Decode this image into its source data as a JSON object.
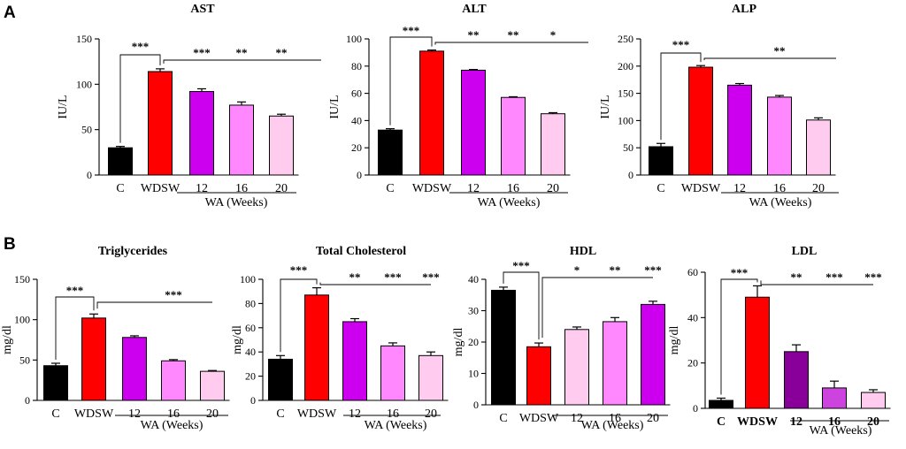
{
  "panel_labels": [
    "A",
    "B"
  ],
  "chart_data": [
    {
      "type": "bar",
      "title": "AST",
      "ylabel": "IU/L",
      "categories": [
        "C",
        "WDSW",
        "12",
        "16",
        "20"
      ],
      "values": [
        30,
        114,
        92,
        77,
        65
      ],
      "errors": [
        1.5,
        3,
        3,
        3.5,
        2
      ],
      "ylim": [
        0,
        150
      ],
      "yticks": [
        0,
        50,
        100,
        150
      ],
      "colors": [
        "#000000",
        "#ff0000",
        "#cc00ee",
        "#ff88ff",
        "#ffccf0"
      ],
      "group_label": "WA (Weeks)",
      "significance": [
        "***",
        "***",
        "**",
        "**"
      ]
    },
    {
      "type": "bar",
      "title": "ALT",
      "ylabel": "IU/L",
      "categories": [
        "C",
        "WDSW",
        "12",
        "16",
        "20"
      ],
      "values": [
        33,
        91,
        77,
        57,
        45
      ],
      "errors": [
        1,
        0.8,
        0.5,
        0.5,
        0.8
      ],
      "ylim": [
        0,
        100
      ],
      "yticks": [
        0,
        20,
        40,
        60,
        80,
        100
      ],
      "colors": [
        "#000000",
        "#ff0000",
        "#cc00ee",
        "#ff88ff",
        "#ffccf0"
      ],
      "group_label": "WA (Weeks)",
      "significance": [
        "***",
        "**",
        "**",
        "*"
      ]
    },
    {
      "type": "bar",
      "title": "ALP",
      "ylabel": "IU/L",
      "categories": [
        "C",
        "WDSW",
        "12",
        "16",
        "20"
      ],
      "values": [
        52,
        198,
        165,
        143,
        101
      ],
      "errors": [
        6,
        3,
        3,
        3,
        4
      ],
      "ylim": [
        0,
        250
      ],
      "yticks": [
        0,
        50,
        100,
        150,
        200,
        250
      ],
      "colors": [
        "#000000",
        "#ff0000",
        "#cc00ee",
        "#ff88ff",
        "#ffccf0"
      ],
      "group_label": "WA (Weeks)",
      "significance": [
        "***",
        "**"
      ]
    },
    {
      "type": "bar",
      "title": "Triglycerides",
      "ylabel": "mg/dl",
      "categories": [
        "C",
        "WDSW",
        "12",
        "16",
        "20"
      ],
      "values": [
        43,
        102,
        78,
        49,
        36
      ],
      "errors": [
        3,
        5,
        2,
        1.5,
        1
      ],
      "ylim": [
        0,
        150
      ],
      "yticks": [
        0,
        50,
        100,
        150
      ],
      "colors": [
        "#000000",
        "#ff0000",
        "#cc00ee",
        "#ff88ff",
        "#ffccf0"
      ],
      "group_label": "WA (Weeks)",
      "significance": [
        "***",
        "***"
      ]
    },
    {
      "type": "bar",
      "title": "Total Cholesterol",
      "ylabel": "mg/dl",
      "categories": [
        "C",
        "WDSW",
        "12",
        "16",
        "20"
      ],
      "values": [
        34,
        87,
        65,
        45,
        37
      ],
      "errors": [
        3,
        6,
        2.5,
        2.5,
        3
      ],
      "ylim": [
        0,
        100
      ],
      "yticks": [
        0,
        20,
        40,
        60,
        80,
        100
      ],
      "colors": [
        "#000000",
        "#ff0000",
        "#cc00ee",
        "#ff88ff",
        "#ffccf0"
      ],
      "group_label": "WA (Weeks)",
      "significance": [
        "***",
        "**",
        "***",
        "***"
      ]
    },
    {
      "type": "bar",
      "title": "HDL",
      "ylabel": "mg/dl",
      "categories": [
        "C",
        "WDSW",
        "12",
        "16",
        "20"
      ],
      "values": [
        36.5,
        18.5,
        24,
        26.5,
        32
      ],
      "errors": [
        1,
        1.2,
        0.8,
        1.3,
        1
      ],
      "ylim": [
        0,
        40
      ],
      "yticks": [
        0,
        10,
        20,
        30,
        40
      ],
      "colors": [
        "#000000",
        "#ff0000",
        "#ffccf0",
        "#ff88ff",
        "#cc00ee"
      ],
      "group_label": "WA (Weeks)",
      "significance": [
        "***",
        "*",
        "**",
        "***"
      ]
    },
    {
      "type": "bar",
      "title": "LDL",
      "ylabel": "mg/dl",
      "categories": [
        "C",
        "WDSW",
        "12",
        "16",
        "20"
      ],
      "values": [
        3.5,
        49,
        25,
        9,
        7
      ],
      "errors": [
        1,
        5,
        3,
        3,
        1.2
      ],
      "ylim": [
        0,
        60
      ],
      "yticks": [
        0,
        20,
        40,
        60
      ],
      "colors": [
        "#000000",
        "#ff0000",
        "#880099",
        "#cc44dd",
        "#ffccf0"
      ],
      "group_label": "WA (Weeks)",
      "significance": [
        "***",
        "**",
        "***",
        "***"
      ]
    }
  ]
}
